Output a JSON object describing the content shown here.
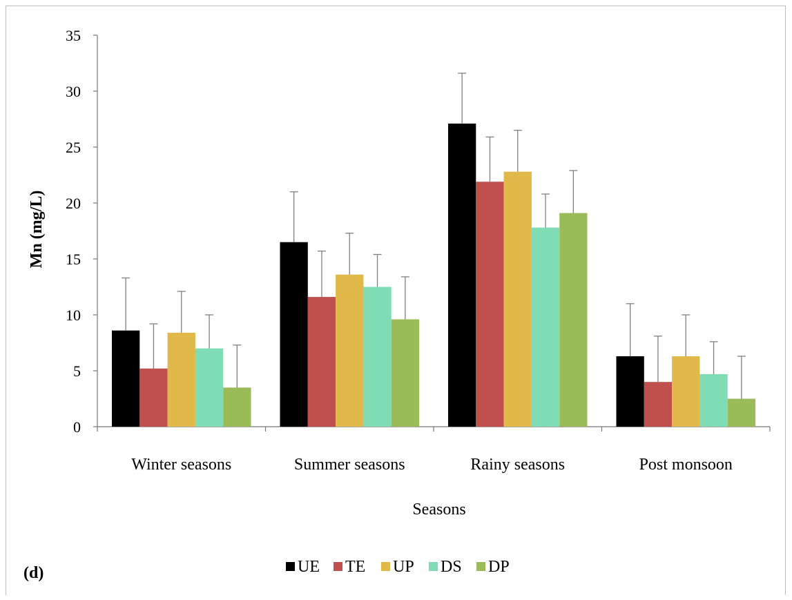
{
  "panel_label": "(d)",
  "chart_data": {
    "type": "bar",
    "xlabel": "Seasons",
    "ylabel": "Mn  (mg/L)",
    "ylim": [
      0,
      35
    ],
    "yticks": [
      0,
      5,
      10,
      15,
      20,
      25,
      30,
      35
    ],
    "grid": false,
    "legend_position": "bottom",
    "categories": [
      "Winter seasons",
      "Summer seasons",
      "Rainy seasons",
      "Post monsoon"
    ],
    "series": [
      {
        "name": "UE",
        "color": "#000000",
        "values": [
          8.6,
          16.5,
          27.1,
          6.3
        ],
        "errors": [
          4.7,
          4.5,
          4.5,
          4.7
        ]
      },
      {
        "name": "TE",
        "color": "#c0504d",
        "values": [
          5.2,
          11.6,
          21.9,
          4.0
        ],
        "errors": [
          4.0,
          4.1,
          4.0,
          4.1
        ]
      },
      {
        "name": "UP",
        "color": "#e0b94a",
        "values": [
          8.4,
          13.6,
          22.8,
          6.3
        ],
        "errors": [
          3.7,
          3.7,
          3.7,
          3.7
        ]
      },
      {
        "name": "DS",
        "color": "#7fdcb4",
        "values": [
          7.0,
          12.5,
          17.8,
          4.7
        ],
        "errors": [
          3.0,
          2.9,
          3.0,
          2.9
        ]
      },
      {
        "name": "DP",
        "color": "#9bbb59",
        "values": [
          3.5,
          9.6,
          19.1,
          2.5
        ],
        "errors": [
          3.8,
          3.8,
          3.8,
          3.8
        ]
      }
    ]
  }
}
